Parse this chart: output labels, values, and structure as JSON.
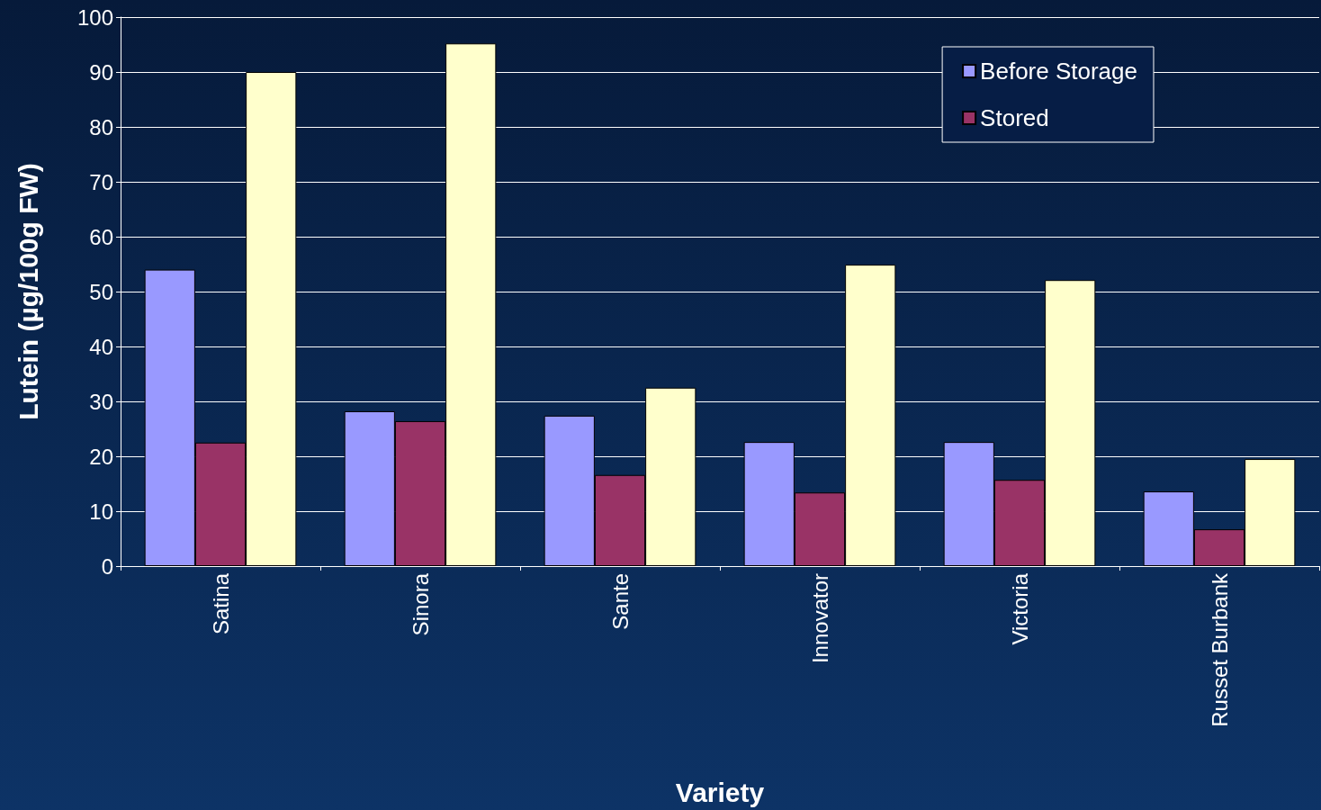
{
  "chart_data": {
    "type": "bar",
    "xlabel": "Variety",
    "ylabel": "Lutein (µg/100g FW)",
    "categories": [
      "Satina",
      "Sinora",
      "Sante",
      "Innovator",
      "Victoria",
      "Russet Burbank"
    ],
    "series": [
      {
        "name": "Before Storage",
        "color": "#9999ff",
        "values": [
          54,
          28.2,
          27.4,
          22.6,
          22.6,
          13.6
        ]
      },
      {
        "name": "Stored",
        "color": "#993366",
        "values": [
          22.5,
          26.4,
          16.6,
          13.4,
          15.7,
          6.7
        ]
      },
      {
        "color": "#ffffcc",
        "values": [
          90,
          95.2,
          32.5,
          54.9,
          52.1,
          19.5
        ]
      }
    ],
    "ylim": [
      0,
      100
    ],
    "yticks": [
      0,
      10,
      20,
      30,
      40,
      50,
      60,
      70,
      80,
      90,
      100
    ],
    "grid": "y",
    "legend": "top right"
  }
}
